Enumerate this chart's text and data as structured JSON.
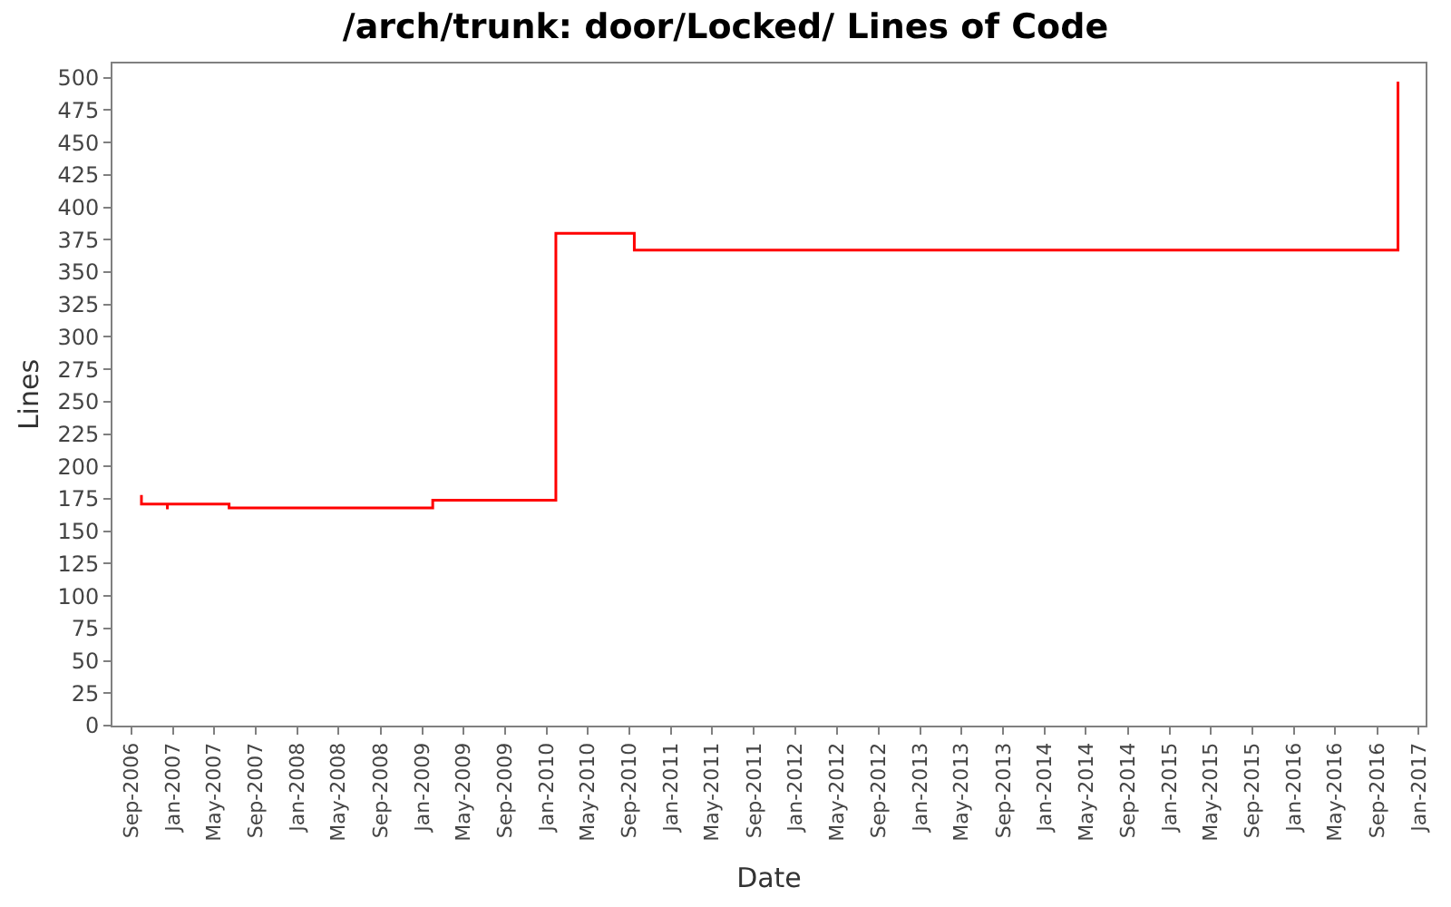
{
  "chart_data": {
    "type": "step",
    "title": "/arch/trunk: door/Locked/ Lines of Code",
    "xlabel": "Date",
    "ylabel": "Lines",
    "x": [
      "2006-10-01",
      "2006-10-01",
      "2006-12-16",
      "2006-12-16",
      "2007-06-15",
      "2009-02-01",
      "2010-01-28",
      "2010-09-15",
      "2016-11-01",
      "2016-11-01"
    ],
    "series": [
      {
        "color": "#ff0000",
        "values": [
          178,
          171,
          167,
          171,
          168,
          174,
          380,
          367,
          367,
          497
        ]
      }
    ],
    "xlim": [
      "2006-07-08",
      "2017-01-21"
    ],
    "xticks": [
      {
        "value": "2006-09-01",
        "label": "Sep-2006"
      },
      {
        "value": "2007-01-01",
        "label": "Jan-2007"
      },
      {
        "value": "2007-05-01",
        "label": "May-2007"
      },
      {
        "value": "2007-09-01",
        "label": "Sep-2007"
      },
      {
        "value": "2008-01-01",
        "label": "Jan-2008"
      },
      {
        "value": "2008-05-01",
        "label": "May-2008"
      },
      {
        "value": "2008-09-01",
        "label": "Sep-2008"
      },
      {
        "value": "2009-01-01",
        "label": "Jan-2009"
      },
      {
        "value": "2009-05-01",
        "label": "May-2009"
      },
      {
        "value": "2009-09-01",
        "label": "Sep-2009"
      },
      {
        "value": "2010-01-01",
        "label": "Jan-2010"
      },
      {
        "value": "2010-05-01",
        "label": "May-2010"
      },
      {
        "value": "2010-09-01",
        "label": "Sep-2010"
      },
      {
        "value": "2011-01-01",
        "label": "Jan-2011"
      },
      {
        "value": "2011-05-01",
        "label": "May-2011"
      },
      {
        "value": "2011-09-01",
        "label": "Sep-2011"
      },
      {
        "value": "2012-01-01",
        "label": "Jan-2012"
      },
      {
        "value": "2012-05-01",
        "label": "May-2012"
      },
      {
        "value": "2012-09-01",
        "label": "Sep-2012"
      },
      {
        "value": "2013-01-01",
        "label": "Jan-2013"
      },
      {
        "value": "2013-05-01",
        "label": "May-2013"
      },
      {
        "value": "2013-09-01",
        "label": "Sep-2013"
      },
      {
        "value": "2014-01-01",
        "label": "Jan-2014"
      },
      {
        "value": "2014-05-01",
        "label": "May-2014"
      },
      {
        "value": "2014-09-01",
        "label": "Sep-2014"
      },
      {
        "value": "2015-01-01",
        "label": "Jan-2015"
      },
      {
        "value": "2015-05-01",
        "label": "May-2015"
      },
      {
        "value": "2015-09-01",
        "label": "Sep-2015"
      },
      {
        "value": "2016-01-01",
        "label": "Jan-2016"
      },
      {
        "value": "2016-05-01",
        "label": "May-2016"
      },
      {
        "value": "2016-09-01",
        "label": "Sep-2016"
      },
      {
        "value": "2017-01-01",
        "label": "Jan-2017"
      }
    ],
    "ylim": [
      0,
      511
    ],
    "yticks": [
      0,
      25,
      50,
      75,
      100,
      125,
      150,
      175,
      200,
      225,
      250,
      275,
      300,
      325,
      350,
      375,
      400,
      425,
      450,
      475,
      500
    ],
    "marker": "none"
  }
}
